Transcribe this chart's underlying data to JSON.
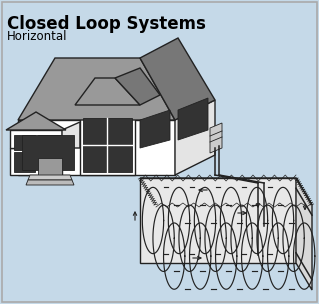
{
  "bg_color": "#c5d9e8",
  "title": "Closed Loop Systems",
  "subtitle": "Horizontal",
  "title_fontsize": 12,
  "subtitle_fontsize": 8.5,
  "lc": "#222222",
  "roof_color": "#999999",
  "roof_dark": "#777777",
  "wall_white": "#ffffff",
  "wall_gray": "#e4e4e4",
  "wall_side": "#d8d8d8",
  "window_color": "#333333",
  "ground_top": "#f0f0f0",
  "ground_front": "#e8e8e8",
  "ground_right": "#d8d8d8",
  "hp_color": "#cccccc",
  "coil_lw": 0.85,
  "pipe_lw": 1.1,
  "border_lw": 1.2,
  "border_color": "#aaaaaa"
}
